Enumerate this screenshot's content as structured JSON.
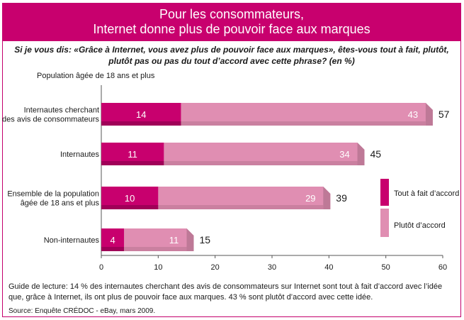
{
  "banner": {
    "line1": "Pour les consommateurs,",
    "line2": "Internet donne plus de pouvoir face aux marques"
  },
  "question": {
    "line1": "Si je vous dis: «Grâce à Internet, vous avez plus de pouvoir face aux marques», êtes-vous tout à fait, plutôt,",
    "line2": "plutôt pas ou pas du tout d’accord avec cette phrase? (en %)"
  },
  "population_label": "Population âgée de 18 ans et plus",
  "guide": "Guide de lecture: 14 % des internautes cherchant des avis de consommateurs sur Internet sont tout à fait d’accord avec l’idée que, grâce à Internet, ils ont plus de pouvoir face aux marques. 43 % sont plutôt d’accord avec cette idée.",
  "source": "Source: Enquête CRÉDOC - eBay, mars 2009.",
  "colors": {
    "banner": "#c8006e",
    "tout_a_fait": "#c8006e",
    "plutot": "#e08eb2"
  },
  "chart_data": {
    "type": "bar",
    "orientation": "horizontal",
    "stacked": true,
    "categories": [
      [
        "Internautes cherchant",
        "des avis de consommateurs"
      ],
      [
        "Internautes"
      ],
      [
        "Ensemble de la population",
        "âgée de 18 ans et plus"
      ],
      [
        "Non-internautes"
      ]
    ],
    "series": [
      {
        "name": "Tout à fait d’accord",
        "values": [
          14,
          11,
          10,
          4
        ],
        "color": "#c8006e"
      },
      {
        "name": "Plutôt d’accord",
        "values": [
          43,
          34,
          29,
          11
        ],
        "color": "#e08eb2"
      }
    ],
    "totals": [
      57,
      45,
      39,
      15
    ],
    "xlim": [
      0,
      60
    ],
    "xticks": [
      0,
      10,
      20,
      30,
      40,
      50,
      60
    ],
    "legend_position": "right"
  }
}
